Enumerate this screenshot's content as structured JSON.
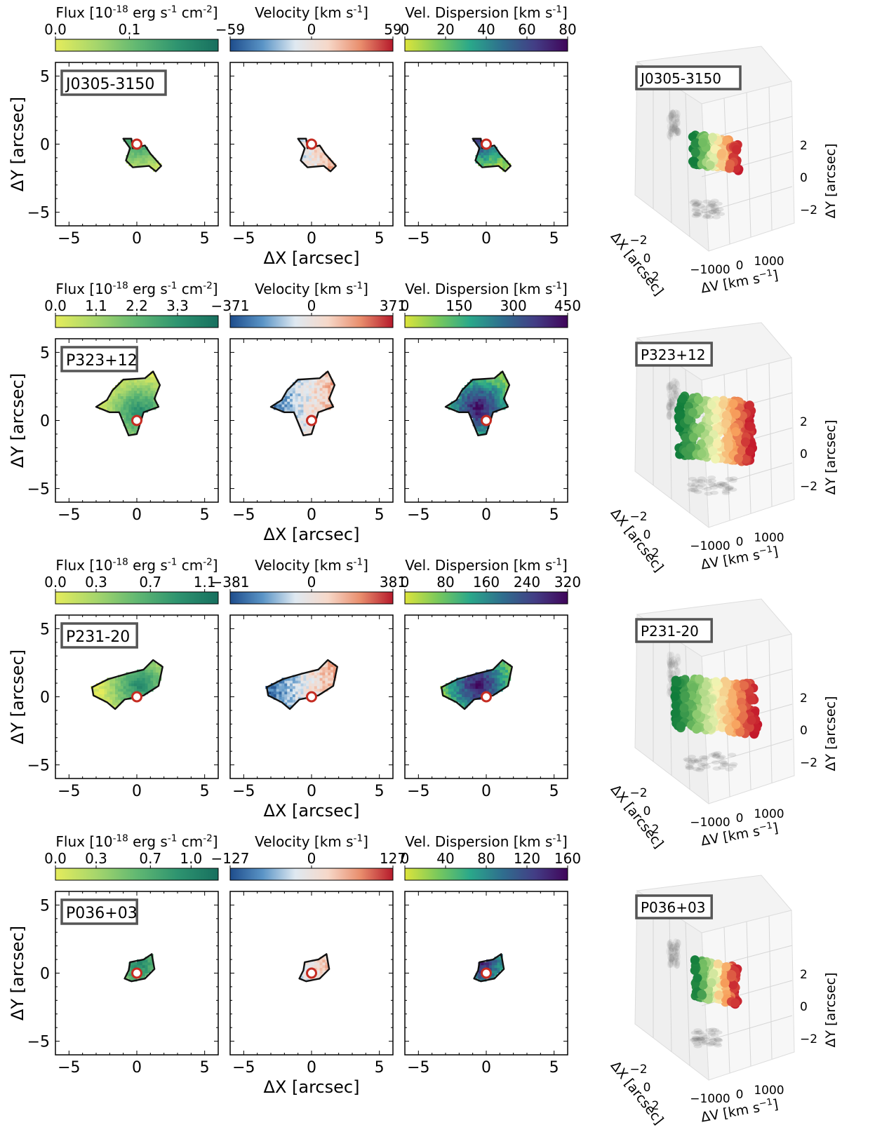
{
  "labels": {
    "y_axis": "ΔY [arcsec]",
    "x_axis": "ΔX [arcsec]",
    "cube_x": "ΔX [arcsec]",
    "cube_y": "ΔY [arcsec]",
    "cube_v_prefix": "ΔV [km s",
    "cube_v_suffix": "]"
  },
  "colors": {
    "flux_cmap": [
      "#e5ec5c",
      "#a6d66c",
      "#61b872",
      "#2e9470",
      "#17705f"
    ],
    "velocity_cmap": [
      "#1e4d8c",
      "#5a94c6",
      "#dfe9f1",
      "#f6d8c9",
      "#e98e6d",
      "#b61a2b"
    ],
    "dispersion_cmap": [
      "#dde43b",
      "#7ac95c",
      "#2aa88a",
      "#2f6e8e",
      "#433d85",
      "#40055a"
    ],
    "cube_cmap": [
      "#0e7b3a",
      "#7cc366",
      "#f6f6b6",
      "#f7a05c",
      "#c3172b"
    ],
    "quasar_marker": "#c52c22",
    "contour": "#111111",
    "label_box": "#555555"
  },
  "chart_data": [
    {
      "type": "heatmap",
      "object": "J0305-3150",
      "xlim": [
        -6,
        6
      ],
      "ylim": [
        -6,
        6
      ],
      "xticks": [
        -5,
        0,
        5
      ],
      "yticks": [
        5,
        0,
        -5
      ],
      "emission_extent_arcsec": {
        "x": [
          -1.0,
          1.8
        ],
        "y": [
          -2.0,
          0.4
        ]
      },
      "colorbars": [
        {
          "title": "Flux [10^{-18} erg s^{-1} cm^{-2}]",
          "ticks": [
            "0.0",
            "0.1"
          ],
          "range": [
            0.0,
            0.22
          ]
        },
        {
          "title": "Velocity [km s^{-1}]",
          "ticks": [
            "−59",
            "0",
            "59"
          ],
          "range": [
            -59,
            59
          ]
        },
        {
          "title": "Vel. Dispersion [km s^{-1}]",
          "ticks": [
            "0",
            "20",
            "40",
            "60",
            "80"
          ],
          "range": [
            0,
            80
          ]
        }
      ],
      "cube": {
        "v_ticks": [
          "−1000",
          "0",
          "1000"
        ],
        "x_ticks": [
          "−2",
          "0",
          "2"
        ],
        "y_ticks": [
          "2",
          "0",
          "−2"
        ]
      }
    },
    {
      "type": "heatmap",
      "object": "P323+12",
      "xlim": [
        -6,
        6
      ],
      "ylim": [
        -6,
        6
      ],
      "xticks": [
        -5,
        0,
        5
      ],
      "yticks": [
        5,
        0,
        -5
      ],
      "emission_extent_arcsec": {
        "x": [
          -3.0,
          1.7
        ],
        "y": [
          -1.1,
          3.7
        ]
      },
      "colorbars": [
        {
          "title": "Flux [10^{-18} erg s^{-1} cm^{-2}]",
          "ticks": [
            "0.0",
            "1.1",
            "2.2",
            "3.3"
          ],
          "range": [
            0.0,
            4.4
          ]
        },
        {
          "title": "Velocity [km s^{-1}]",
          "ticks": [
            "−371",
            "0",
            "371"
          ],
          "range": [
            -371,
            371
          ]
        },
        {
          "title": "Vel. Dispersion [km s^{-1}]",
          "ticks": [
            "0",
            "150",
            "300",
            "450"
          ],
          "range": [
            0,
            450
          ]
        }
      ],
      "cube": {
        "v_ticks": [
          "−1000",
          "0",
          "1000"
        ],
        "x_ticks": [
          "−2",
          "0",
          "2"
        ],
        "y_ticks": [
          "2",
          "0",
          "−2"
        ]
      }
    },
    {
      "type": "heatmap",
      "object": "P231-20",
      "xlim": [
        -6,
        6
      ],
      "ylim": [
        -6,
        6
      ],
      "xticks": [
        -5,
        0,
        5
      ],
      "yticks": [
        5,
        0,
        -5
      ],
      "emission_extent_arcsec": {
        "x": [
          -3.3,
          1.9
        ],
        "y": [
          -1.2,
          2.8
        ]
      },
      "colorbars": [
        {
          "title": "Flux [10^{-18} erg s^{-1} cm^{-2}]",
          "ticks": [
            "0.0",
            "0.3",
            "0.7",
            "1.1"
          ],
          "range": [
            0.0,
            1.2
          ]
        },
        {
          "title": "Velocity [km s^{-1}]",
          "ticks": [
            "−381",
            "0",
            "381"
          ],
          "range": [
            -381,
            381
          ]
        },
        {
          "title": "Vel. Dispersion [km s^{-1}]",
          "ticks": [
            "0",
            "80",
            "160",
            "240",
            "320"
          ],
          "range": [
            0,
            320
          ]
        }
      ],
      "cube": {
        "v_ticks": [
          "−1000",
          "0",
          "1000"
        ],
        "x_ticks": [
          "−2",
          "0",
          "2"
        ],
        "y_ticks": [
          "2",
          "0",
          "−2"
        ]
      }
    },
    {
      "type": "heatmap",
      "object": "P036+03",
      "xlim": [
        -6,
        6
      ],
      "ylim": [
        -6,
        6
      ],
      "xticks": [
        -5,
        0,
        5
      ],
      "yticks": [
        5,
        0,
        -5
      ],
      "emission_extent_arcsec": {
        "x": [
          -1.4,
          1.3
        ],
        "y": [
          -1.6,
          1.4
        ]
      },
      "colorbars": [
        {
          "title": "Flux [10^{-18} erg s^{-1} cm^{-2}]",
          "ticks": [
            "0.0",
            "0.3",
            "0.7",
            "1.0"
          ],
          "range": [
            0.0,
            1.2
          ]
        },
        {
          "title": "Velocity [km s^{-1}]",
          "ticks": [
            "−127",
            "0",
            "127"
          ],
          "range": [
            -127,
            127
          ]
        },
        {
          "title": "Vel. Dispersion [km s^{-1}]",
          "ticks": [
            "0",
            "40",
            "80",
            "120",
            "160"
          ],
          "range": [
            0,
            160
          ]
        }
      ],
      "cube": {
        "v_ticks": [
          "−1000",
          "0",
          "1000"
        ],
        "x_ticks": [
          "−2",
          "0",
          "2"
        ],
        "y_ticks": [
          "2",
          "0",
          "−2"
        ]
      }
    }
  ]
}
